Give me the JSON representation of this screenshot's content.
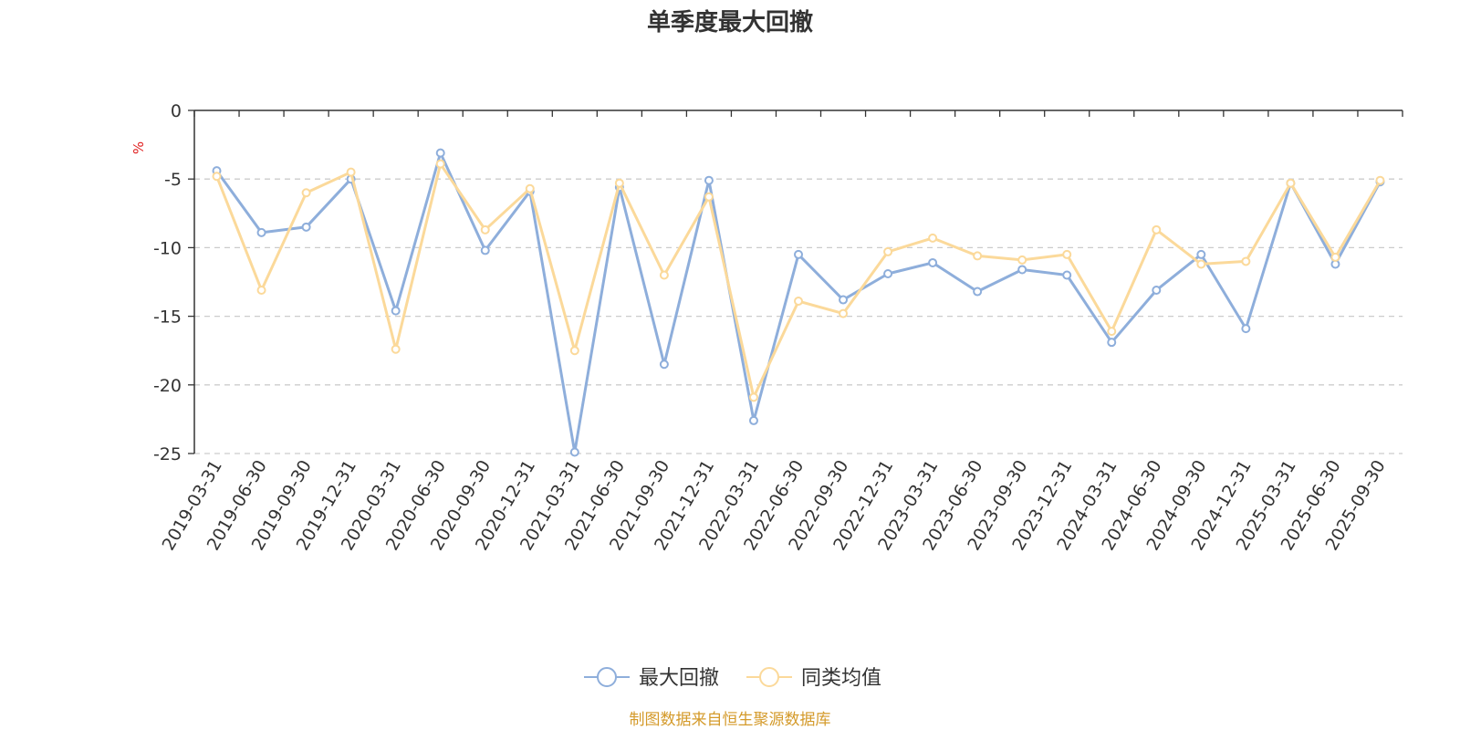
{
  "chart_data": {
    "type": "line",
    "title": "单季度最大回撤",
    "ylabel": "%",
    "ylim": [
      -25,
      0
    ],
    "yticks": [
      0,
      -5,
      -10,
      -15,
      -20,
      -25
    ],
    "categories": [
      "2019-03-31",
      "2019-06-30",
      "2019-09-30",
      "2019-12-31",
      "2020-03-31",
      "2020-06-30",
      "2020-09-30",
      "2020-12-31",
      "2021-03-31",
      "2021-06-30",
      "2021-09-30",
      "2021-12-31",
      "2022-03-31",
      "2022-06-30",
      "2022-09-30",
      "2022-12-31",
      "2023-03-31",
      "2023-06-30",
      "2023-09-30",
      "2023-12-31",
      "2024-03-31",
      "2024-06-30",
      "2024-09-30",
      "2024-12-31",
      "2025-03-31",
      "2025-06-30",
      "2025-09-30"
    ],
    "series": [
      {
        "name": "最大回撤",
        "color": "#8eaedb",
        "values": [
          -4.4,
          -8.9,
          -8.5,
          -5.0,
          -14.6,
          -3.1,
          -10.2,
          -5.9,
          -24.9,
          -5.6,
          -18.5,
          -5.1,
          -22.6,
          -10.5,
          -13.8,
          -11.9,
          -11.1,
          -13.2,
          -11.6,
          -12.0,
          -16.9,
          -13.1,
          -10.5,
          -15.9,
          -5.3,
          -11.2,
          -5.2
        ]
      },
      {
        "name": "同类均值",
        "color": "#fbd99a",
        "values": [
          -4.8,
          -13.1,
          -6.0,
          -4.5,
          -17.4,
          -3.9,
          -8.7,
          -5.7,
          -17.5,
          -5.3,
          -12.0,
          -6.3,
          -20.9,
          -13.9,
          -14.8,
          -10.3,
          -9.3,
          -10.6,
          -10.9,
          -10.5,
          -16.1,
          -8.7,
          -11.2,
          -11.0,
          -5.3,
          -10.7,
          -5.1
        ]
      }
    ],
    "legend_position": "bottom-center",
    "grid": "dashed-horizontal"
  },
  "colors": {
    "unit": "#e02020",
    "source": "#d49a2a",
    "axis": "#333333",
    "grid": "#cccccc"
  },
  "source_text": "制图数据来自恒生聚源数据库"
}
